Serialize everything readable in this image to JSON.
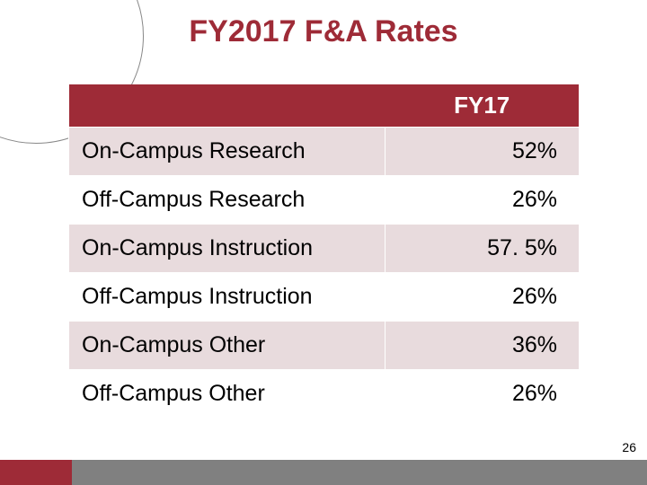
{
  "title": "FY2017 F&A Rates",
  "header": {
    "blank": "",
    "col1": "FY17"
  },
  "rows": [
    {
      "label": "On-Campus Research",
      "value": "52%"
    },
    {
      "label": "Off-Campus Research",
      "value": "26%"
    },
    {
      "label": "On-Campus Instruction",
      "value": "57. 5%"
    },
    {
      "label": "Off-Campus Instruction",
      "value": "26%"
    },
    {
      "label": "On-Campus Other",
      "value": "36%"
    },
    {
      "label": "Off-Campus Other",
      "value": "26%"
    }
  ],
  "page_number": "26",
  "colors": {
    "accent": "#9e2b37",
    "row_odd_bg": "#e8dbdd",
    "row_even_bg": "#ffffff",
    "bottom_gray": "#808080",
    "text": "#000000",
    "header_text": "#ffffff"
  },
  "table_style": {
    "type": "table",
    "col_widths_pct": [
      62,
      38
    ],
    "row_label_align": "left",
    "row_value_align": "right",
    "cell_fontsize": 25,
    "header_fontsize": 26,
    "title_fontsize": 34
  }
}
